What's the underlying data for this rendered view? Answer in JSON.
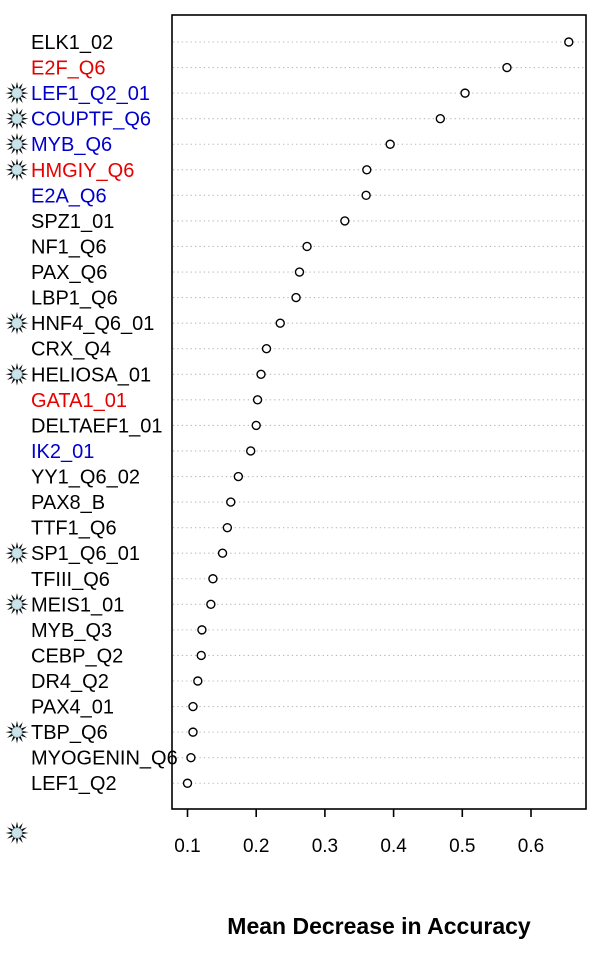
{
  "chart_data": {
    "type": "scatter",
    "variant": "dotchart",
    "title": "",
    "xlabel": "Mean Decrease in Accuracy",
    "xlim": [
      0.077,
      0.68
    ],
    "x_ticks": [
      0.1,
      0.2,
      0.3,
      0.4,
      0.5,
      0.6
    ],
    "grid": "dotted-horizontal",
    "legend": "none",
    "point_style": "open-circle",
    "categories": [
      "ELK1_02",
      "E2F_Q6",
      "LEF1_Q2_01",
      "COUPTF_Q6",
      "MYB_Q6",
      "HMGIY_Q6",
      "E2A_Q6",
      "SPZ1_01",
      "NF1_Q6",
      "PAX_Q6",
      "LBP1_Q6",
      "HNF4_Q6_01",
      "CRX_Q4",
      "HELIOSA_01",
      "GATA1_01",
      "DELTAEF1_01",
      "IK2_01",
      "YY1_Q6_02",
      "PAX8_B",
      "TTF1_Q6",
      "SP1_Q6_01",
      "TFIII_Q6",
      "MEIS1_01",
      "MYB_Q3",
      "CEBP_Q2",
      "DR4_Q2",
      "PAX4_01",
      "TBP_Q6",
      "MYOGENIN_Q6",
      "LEF1_Q2"
    ],
    "values": [
      0.655,
      0.565,
      0.504,
      0.468,
      0.395,
      0.361,
      0.36,
      0.329,
      0.274,
      0.263,
      0.258,
      0.235,
      0.215,
      0.207,
      0.202,
      0.2,
      0.192,
      0.174,
      0.163,
      0.158,
      0.151,
      0.137,
      0.134,
      0.121,
      0.12,
      0.115,
      0.108,
      0.108,
      0.105,
      0.1
    ],
    "label_colors": [
      "black",
      "red",
      "blue",
      "blue",
      "blue",
      "red",
      "blue",
      "black",
      "black",
      "black",
      "black",
      "black",
      "black",
      "black",
      "red",
      "black",
      "blue",
      "black",
      "black",
      "black",
      "black",
      "black",
      "black",
      "black",
      "black",
      "black",
      "black",
      "black",
      "black",
      "black"
    ],
    "starred": [
      false,
      false,
      true,
      true,
      true,
      true,
      false,
      false,
      false,
      false,
      false,
      true,
      false,
      true,
      false,
      false,
      false,
      false,
      false,
      false,
      true,
      false,
      true,
      false,
      false,
      false,
      false,
      true,
      false,
      false
    ],
    "footer_star": true,
    "colors": {
      "black_label": "#000000",
      "red_label": "#e60000",
      "blue_label": "#0000cc",
      "star_fill": "#111111",
      "star_center": "#c9e3e9",
      "grid_line": "#b9b9b9",
      "point_stroke": "#000000",
      "point_fill": "#ffffff",
      "axis": "#000000"
    }
  }
}
